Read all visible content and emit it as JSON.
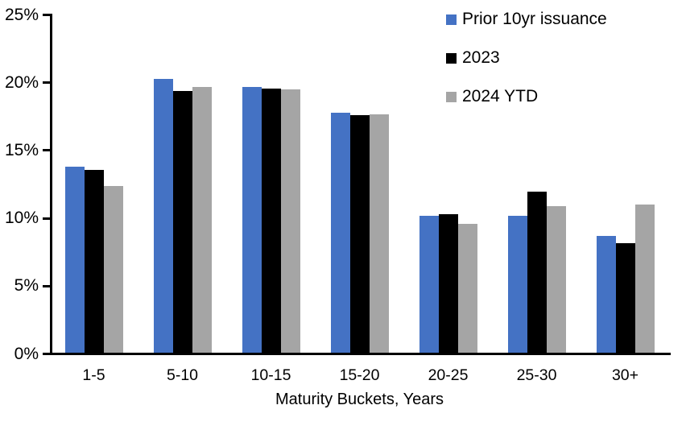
{
  "chart_data": {
    "type": "bar",
    "title": "",
    "xlabel": "Maturity Buckets, Years",
    "ylabel": "",
    "ylim": [
      0,
      25
    ],
    "ytick_step": 5,
    "ytick_labels": [
      "0%",
      "5%",
      "10%",
      "15%",
      "20%",
      "25%"
    ],
    "grid": false,
    "legend_position": "top-right",
    "categories": [
      "1-5",
      "5-10",
      "10-15",
      "15-20",
      "20-25",
      "25-30",
      "30+"
    ],
    "series": [
      {
        "name": "Prior 10yr issuance",
        "color": "#4472C4",
        "values": [
          13.7,
          20.2,
          19.6,
          17.7,
          10.1,
          10.1,
          8.6
        ]
      },
      {
        "name": "2023",
        "color": "#000000",
        "values": [
          13.5,
          19.3,
          19.5,
          17.5,
          10.2,
          11.9,
          8.1
        ]
      },
      {
        "name": "2024 YTD",
        "color": "#A5A5A5",
        "values": [
          12.3,
          19.6,
          19.4,
          17.6,
          9.5,
          10.8,
          10.9
        ]
      }
    ],
    "axis_color": "#000000",
    "text_color": "#000000"
  }
}
